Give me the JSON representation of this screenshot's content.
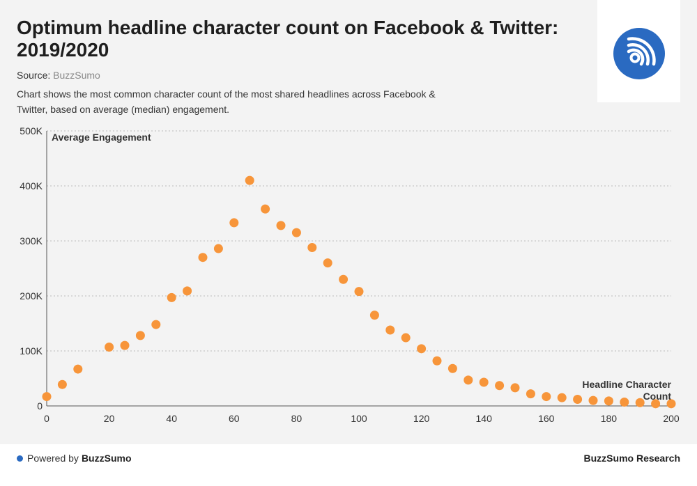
{
  "header": {
    "title": "Optimum headline character count on Facebook & Twitter: 2019/2020",
    "source_prefix": "Source: ",
    "source_name": "BuzzSumo",
    "description": "Chart shows the most common character count of the most shared headlines across Facebook & Twitter, based on average (median) engagement."
  },
  "logo": {
    "icon": "rss-feed-icon",
    "color": "#2a6ac1"
  },
  "footer": {
    "powered_prefix": "Powered by",
    "powered_brand": "BuzzSumo",
    "research_label": "BuzzSumo Research"
  },
  "chart_data": {
    "type": "scatter",
    "title": "Optimum headline character count on Facebook & Twitter: 2019/2020",
    "xlabel": "Headline Character Count",
    "ylabel": "Average Engagement",
    "xlim": [
      0,
      200
    ],
    "ylim": [
      0,
      500000
    ],
    "x_ticks": [
      0,
      20,
      40,
      60,
      80,
      100,
      120,
      140,
      160,
      180,
      200
    ],
    "y_ticks": [
      {
        "value": 0,
        "label": "0"
      },
      {
        "value": 100000,
        "label": "100K"
      },
      {
        "value": 200000,
        "label": "200K"
      },
      {
        "value": 300000,
        "label": "300K"
      },
      {
        "value": 400000,
        "label": "400K"
      },
      {
        "value": 500000,
        "label": "500K"
      }
    ],
    "grid": true,
    "marker_color": "#f7953a",
    "x": [
      0,
      5,
      10,
      20,
      25,
      30,
      35,
      40,
      45,
      50,
      55,
      60,
      65,
      70,
      75,
      80,
      85,
      90,
      95,
      100,
      105,
      110,
      115,
      120,
      125,
      130,
      135,
      140,
      145,
      150,
      155,
      160,
      165,
      170,
      175,
      180,
      185,
      190,
      195,
      200
    ],
    "y": [
      17000,
      39000,
      67000,
      107000,
      110000,
      128000,
      148000,
      197000,
      209000,
      270000,
      286000,
      333000,
      410000,
      358000,
      328000,
      315000,
      288000,
      260000,
      230000,
      208000,
      165000,
      138000,
      124000,
      104000,
      82000,
      68000,
      47000,
      43000,
      37000,
      33000,
      22000,
      17000,
      15000,
      12000,
      10000,
      9000,
      7000,
      6000,
      4000,
      4000
    ]
  }
}
